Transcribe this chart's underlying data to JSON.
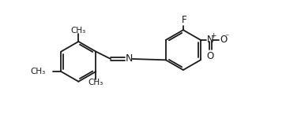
{
  "bg_color": "#ffffff",
  "line_color": "#1a1a1a",
  "lw": 1.3,
  "fs": 7.5,
  "xlim": [
    0,
    10.5
  ],
  "ylim": [
    -0.5,
    5.2
  ],
  "figsize": [
    3.62,
    1.54
  ],
  "dpi": 100
}
